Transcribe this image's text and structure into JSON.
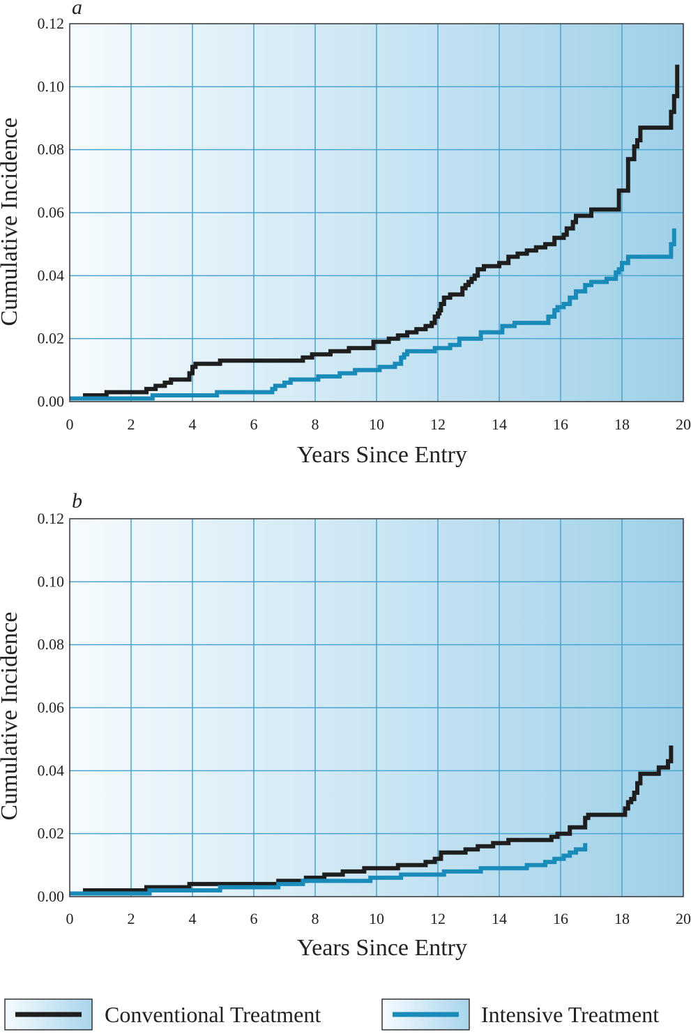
{
  "chart_data": [
    {
      "type": "line",
      "panel_label": "a",
      "xlabel": "Years Since Entry",
      "ylabel": "Cumulative Incidence",
      "xlim": [
        0,
        20
      ],
      "ylim": [
        0,
        0.12
      ],
      "x_ticks": [
        "0",
        "2",
        "4",
        "6",
        "8",
        "10",
        "12",
        "14",
        "16",
        "18",
        "20"
      ],
      "y_ticks": [
        "0.00",
        "0.02",
        "0.04",
        "0.06",
        "0.08",
        "0.10",
        "0.12"
      ],
      "grid": true,
      "step": true,
      "series": [
        {
          "name": "Conventional Treatment",
          "color": "#1e1e1e",
          "points": [
            [
              0,
              0.001
            ],
            [
              0.5,
              0.002
            ],
            [
              1.2,
              0.003
            ],
            [
              2.5,
              0.004
            ],
            [
              2.8,
              0.005
            ],
            [
              3.1,
              0.006
            ],
            [
              3.3,
              0.007
            ],
            [
              3.9,
              0.009
            ],
            [
              4.0,
              0.011
            ],
            [
              4.1,
              0.012
            ],
            [
              4.9,
              0.013
            ],
            [
              7.6,
              0.014
            ],
            [
              7.9,
              0.015
            ],
            [
              8.5,
              0.016
            ],
            [
              9.1,
              0.017
            ],
            [
              9.9,
              0.019
            ],
            [
              10.4,
              0.02
            ],
            [
              10.7,
              0.021
            ],
            [
              11.0,
              0.022
            ],
            [
              11.3,
              0.023
            ],
            [
              11.6,
              0.024
            ],
            [
              11.8,
              0.025
            ],
            [
              11.9,
              0.027
            ],
            [
              12.0,
              0.028
            ],
            [
              12.05,
              0.029
            ],
            [
              12.1,
              0.031
            ],
            [
              12.2,
              0.033
            ],
            [
              12.4,
              0.034
            ],
            [
              12.8,
              0.036
            ],
            [
              12.9,
              0.037
            ],
            [
              13.0,
              0.038
            ],
            [
              13.1,
              0.039
            ],
            [
              13.2,
              0.04
            ],
            [
              13.3,
              0.042
            ],
            [
              13.5,
              0.043
            ],
            [
              14.0,
              0.044
            ],
            [
              14.3,
              0.046
            ],
            [
              14.6,
              0.047
            ],
            [
              14.9,
              0.048
            ],
            [
              15.2,
              0.049
            ],
            [
              15.5,
              0.05
            ],
            [
              15.8,
              0.052
            ],
            [
              16.1,
              0.053
            ],
            [
              16.2,
              0.055
            ],
            [
              16.4,
              0.057
            ],
            [
              16.5,
              0.059
            ],
            [
              17.0,
              0.061
            ],
            [
              17.9,
              0.067
            ],
            [
              18.2,
              0.077
            ],
            [
              18.4,
              0.081
            ],
            [
              18.5,
              0.083
            ],
            [
              18.6,
              0.087
            ],
            [
              19.6,
              0.092
            ],
            [
              19.7,
              0.097
            ],
            [
              19.8,
              0.107
            ]
          ]
        },
        {
          "name": "Intensive Treatment",
          "color": "#1a8ab8",
          "points": [
            [
              0,
              0.001
            ],
            [
              2.7,
              0.002
            ],
            [
              4.8,
              0.003
            ],
            [
              6.6,
              0.004
            ],
            [
              6.7,
              0.005
            ],
            [
              7.0,
              0.006
            ],
            [
              7.2,
              0.007
            ],
            [
              8.1,
              0.008
            ],
            [
              8.8,
              0.009
            ],
            [
              9.3,
              0.01
            ],
            [
              10.1,
              0.011
            ],
            [
              10.6,
              0.012
            ],
            [
              10.8,
              0.014
            ],
            [
              10.9,
              0.015
            ],
            [
              11.0,
              0.016
            ],
            [
              11.9,
              0.017
            ],
            [
              12.4,
              0.018
            ],
            [
              12.7,
              0.02
            ],
            [
              13.4,
              0.022
            ],
            [
              14.1,
              0.024
            ],
            [
              14.5,
              0.025
            ],
            [
              15.6,
              0.027
            ],
            [
              15.8,
              0.029
            ],
            [
              15.9,
              0.03
            ],
            [
              16.1,
              0.031
            ],
            [
              16.3,
              0.033
            ],
            [
              16.5,
              0.035
            ],
            [
              16.8,
              0.037
            ],
            [
              17.0,
              0.038
            ],
            [
              17.5,
              0.039
            ],
            [
              17.8,
              0.041
            ],
            [
              17.9,
              0.042
            ],
            [
              18.0,
              0.044
            ],
            [
              18.2,
              0.046
            ],
            [
              19.6,
              0.05
            ],
            [
              19.7,
              0.055
            ]
          ]
        }
      ]
    },
    {
      "type": "line",
      "panel_label": "b",
      "xlabel": "Years Since Entry",
      "ylabel": "Cumulative Incidence",
      "xlim": [
        0,
        20
      ],
      "ylim": [
        0,
        0.12
      ],
      "x_ticks": [
        "0",
        "2",
        "4",
        "6",
        "8",
        "10",
        "12",
        "14",
        "16",
        "18",
        "20"
      ],
      "y_ticks": [
        "0.00",
        "0.02",
        "0.04",
        "0.06",
        "0.08",
        "0.10",
        "0.12"
      ],
      "grid": true,
      "step": true,
      "series": [
        {
          "name": "Conventional Treatment",
          "color": "#1e1e1e",
          "points": [
            [
              0,
              0.001
            ],
            [
              0.5,
              0.002
            ],
            [
              2.5,
              0.003
            ],
            [
              3.9,
              0.004
            ],
            [
              6.8,
              0.005
            ],
            [
              7.7,
              0.006
            ],
            [
              8.3,
              0.007
            ],
            [
              8.9,
              0.008
            ],
            [
              9.6,
              0.009
            ],
            [
              10.7,
              0.01
            ],
            [
              11.6,
              0.011
            ],
            [
              11.9,
              0.012
            ],
            [
              12.1,
              0.014
            ],
            [
              12.9,
              0.015
            ],
            [
              13.3,
              0.016
            ],
            [
              13.8,
              0.017
            ],
            [
              14.3,
              0.018
            ],
            [
              15.7,
              0.019
            ],
            [
              15.9,
              0.02
            ],
            [
              16.3,
              0.022
            ],
            [
              16.8,
              0.025
            ],
            [
              16.9,
              0.026
            ],
            [
              18.1,
              0.028
            ],
            [
              18.2,
              0.03
            ],
            [
              18.3,
              0.031
            ],
            [
              18.4,
              0.033
            ],
            [
              18.5,
              0.036
            ],
            [
              18.6,
              0.039
            ],
            [
              19.2,
              0.041
            ],
            [
              19.5,
              0.043
            ],
            [
              19.6,
              0.048
            ]
          ]
        },
        {
          "name": "Intensive Treatment",
          "color": "#1a8ab8",
          "points": [
            [
              0,
              0.001
            ],
            [
              2.6,
              0.002
            ],
            [
              4.9,
              0.003
            ],
            [
              6.8,
              0.004
            ],
            [
              7.6,
              0.005
            ],
            [
              9.8,
              0.006
            ],
            [
              10.8,
              0.007
            ],
            [
              12.2,
              0.008
            ],
            [
              13.4,
              0.009
            ],
            [
              14.9,
              0.01
            ],
            [
              15.5,
              0.011
            ],
            [
              15.8,
              0.012
            ],
            [
              16.1,
              0.013
            ],
            [
              16.3,
              0.014
            ],
            [
              16.5,
              0.015
            ],
            [
              16.8,
              0.017
            ]
          ]
        }
      ]
    }
  ],
  "legend": {
    "items": [
      {
        "label": "Conventional Treatment",
        "color": "#1e1e1e"
      },
      {
        "label": "Intensive Treatment",
        "color": "#1a8ab8"
      }
    ]
  },
  "colors": {
    "grid": "#4aa3cf",
    "gradient_start": "#f6fbfe",
    "gradient_end": "#9fd0e8",
    "frame": "#333333"
  }
}
